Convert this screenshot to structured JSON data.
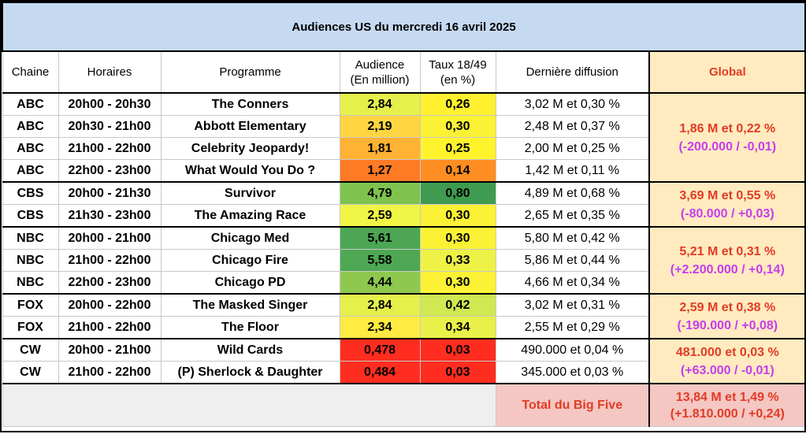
{
  "title": "Audiences US du mercredi 16 avril 2025",
  "headers": {
    "chaine": "Chaine",
    "horaires": "Horaires",
    "programme": "Programme",
    "audience_l1": "Audience",
    "audience_l2": "(En million)",
    "taux_l1": "Taux 18/49",
    "taux_l2": "(en %)",
    "derniere": "Dernière diffusion",
    "global": "Global"
  },
  "rows": [
    {
      "chaine": "ABC",
      "horaires": "20h00 - 20h30",
      "programme": "The Conners",
      "audience": "2,84",
      "taux": "0,26",
      "derniere": "3,02 M et 0,30 %",
      "aud_color": "#e5f04c",
      "taux_color": "#fff12f"
    },
    {
      "chaine": "ABC",
      "horaires": "20h30 - 21h00",
      "programme": "Abbott Elementary",
      "audience": "2,19",
      "taux": "0,30",
      "derniere": "2,48 M et 0,37 %",
      "aud_color": "#ffd642",
      "taux_color": "#fbf235"
    },
    {
      "chaine": "ABC",
      "horaires": "21h00 - 22h00",
      "programme": "Celebrity Jeopardy!",
      "audience": "1,81",
      "taux": "0,25",
      "derniere": "2,00 M et 0,25 %",
      "aud_color": "#ffb233",
      "taux_color": "#fff32c"
    },
    {
      "chaine": "ABC",
      "horaires": "22h00 - 23h00",
      "programme": "What Would You Do ?",
      "audience": "1,27",
      "taux": "0,14",
      "derniere": "1,42 M et 0,11 %",
      "aud_color": "#ff7a24",
      "taux_color": "#ff8e22"
    },
    {
      "chaine": "CBS",
      "horaires": "20h00 - 21h30",
      "programme": "Survivor",
      "audience": "4,79",
      "taux": "0,80",
      "derniere": "4,89 M et 0,68 %",
      "aud_color": "#7fc34f",
      "taux_color": "#3f9b4f"
    },
    {
      "chaine": "CBS",
      "horaires": "21h30 - 23h00",
      "programme": "The Amazing Race",
      "audience": "2,59",
      "taux": "0,30",
      "derniere": "2,65 M et 0,35 %",
      "aud_color": "#f0f546",
      "taux_color": "#fbf235"
    },
    {
      "chaine": "NBC",
      "horaires": "20h00 - 21h00",
      "programme": "Chicago Med",
      "audience": "5,61",
      "taux": "0,30",
      "derniere": "5,80 M et 0,42 %",
      "aud_color": "#4ca653",
      "taux_color": "#fbf235"
    },
    {
      "chaine": "NBC",
      "horaires": "21h00 - 22h00",
      "programme": "Chicago Fire",
      "audience": "5,58",
      "taux": "0,33",
      "derniere": "5,86 M et 0,44 %",
      "aud_color": "#4ea853",
      "taux_color": "#eef246"
    },
    {
      "chaine": "NBC",
      "horaires": "22h00 - 23h00",
      "programme": "Chicago PD",
      "audience": "4,44",
      "taux": "0,30",
      "derniere": "4,66 M et 0,34 %",
      "aud_color": "#8ec84e",
      "taux_color": "#fbf235"
    },
    {
      "chaine": "FOX",
      "horaires": "20h00 - 22h00",
      "programme": "The Masked Singer",
      "audience": "2,84",
      "taux": "0,42",
      "derniere": "3,02 M et 0,31 %",
      "aud_color": "#e5f04c",
      "taux_color": "#d0e852"
    },
    {
      "chaine": "FOX",
      "horaires": "21h00 - 22h00",
      "programme": "The Floor",
      "audience": "2,34",
      "taux": "0,34",
      "derniere": "2,55 M et 0,29 %",
      "aud_color": "#ffeb42",
      "taux_color": "#e9f049"
    },
    {
      "chaine": "CW",
      "horaires": "20h00 - 21h00",
      "programme": "Wild Cards",
      "audience": "0,478",
      "taux": "0,03",
      "derniere": "490.000 et 0,04 %",
      "aud_color": "#ff2d1f",
      "taux_color": "#ff2d1f"
    },
    {
      "chaine": "CW",
      "horaires": "21h00 - 22h00",
      "programme": "(P) Sherlock & Daughter",
      "audience": "0,484",
      "taux": "0,03",
      "derniere": "345.000 et 0,03 %",
      "aud_color": "#ff2d1f",
      "taux_color": "#ff2d1f"
    }
  ],
  "globals": [
    {
      "line1": "1,86 M et 0,22 %",
      "line2": "(-200.000 / -0,01)"
    },
    {
      "line1": "3,69 M et 0,55 %",
      "line2": "(-80.000 / +0,03)"
    },
    {
      "line1": "5,21 M et 0,31 %",
      "line2": "(+2.200.000 / +0,14)"
    },
    {
      "line1": "2,59 M et 0,38 %",
      "line2": "(-190.000 / +0,08)"
    },
    {
      "line1": "481.000 et 0,03 %",
      "line2": "(+63.000 / -0,01)"
    }
  ],
  "footer": {
    "label": "Total du Big Five",
    "line1": "13,84 M et 1,49 %",
    "line2": "(+1.810.000 / +0,24)"
  },
  "colors": {
    "title_bg": "#c5d9f1",
    "global_bg": "#ffebbf",
    "global_red": "#e23b25",
    "global_magenta": "#c63cf0",
    "total_bg": "#f4c7c3"
  }
}
